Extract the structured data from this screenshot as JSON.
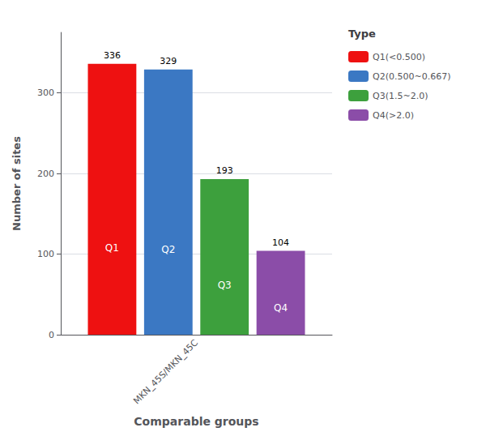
{
  "chart_data": {
    "type": "bar",
    "categories": [
      "MKN_45S/MKN_45C"
    ],
    "series": [
      {
        "name": "Q1(<0.500)",
        "label": "Q1",
        "color": "#EE1111",
        "values": [
          336
        ]
      },
      {
        "name": "Q2(0.500~0.667)",
        "label": "Q2",
        "color": "#3B78C3",
        "values": [
          329
        ]
      },
      {
        "name": "Q3(1.5~2.0)",
        "label": "Q3",
        "color": "#3DA03D",
        "values": [
          193
        ]
      },
      {
        "name": "Q4(>2.0)",
        "label": "Q4",
        "color": "#8B4DA8",
        "values": [
          104
        ]
      }
    ],
    "xlabel": "Comparable groups",
    "ylabel": "Number of sites",
    "ylim": [
      0,
      375
    ],
    "yticks": [
      0,
      100,
      200,
      300
    ],
    "grid": true,
    "legend": "right",
    "legend_title": "Type",
    "data_labels": true
  }
}
